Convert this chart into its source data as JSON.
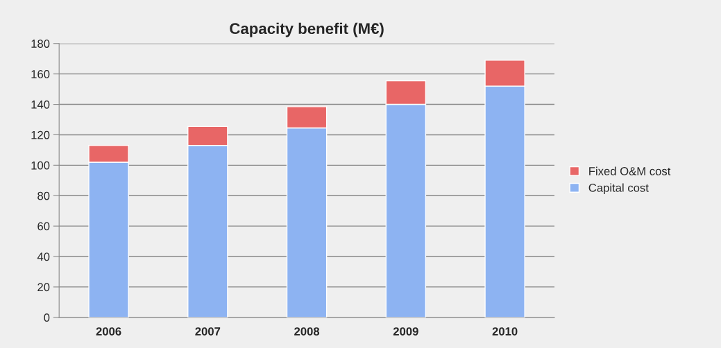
{
  "chart_data": {
    "type": "bar",
    "title": "Capacity benefit (M€)",
    "categories": [
      "2006",
      "2007",
      "2008",
      "2009",
      "2010"
    ],
    "stacked": true,
    "series": [
      {
        "name": "Capital cost",
        "color": "#8db3f2",
        "values": [
          102,
          113,
          124.5,
          140,
          152
        ]
      },
      {
        "name": "Fixed O&M cost",
        "color": "#e86666",
        "values": [
          11,
          12.5,
          14,
          15.5,
          17
        ]
      }
    ],
    "ylim": [
      0,
      180
    ],
    "yticks": [
      0,
      20,
      40,
      60,
      80,
      100,
      120,
      140,
      160,
      180
    ],
    "grid": "y",
    "legend": "right"
  }
}
